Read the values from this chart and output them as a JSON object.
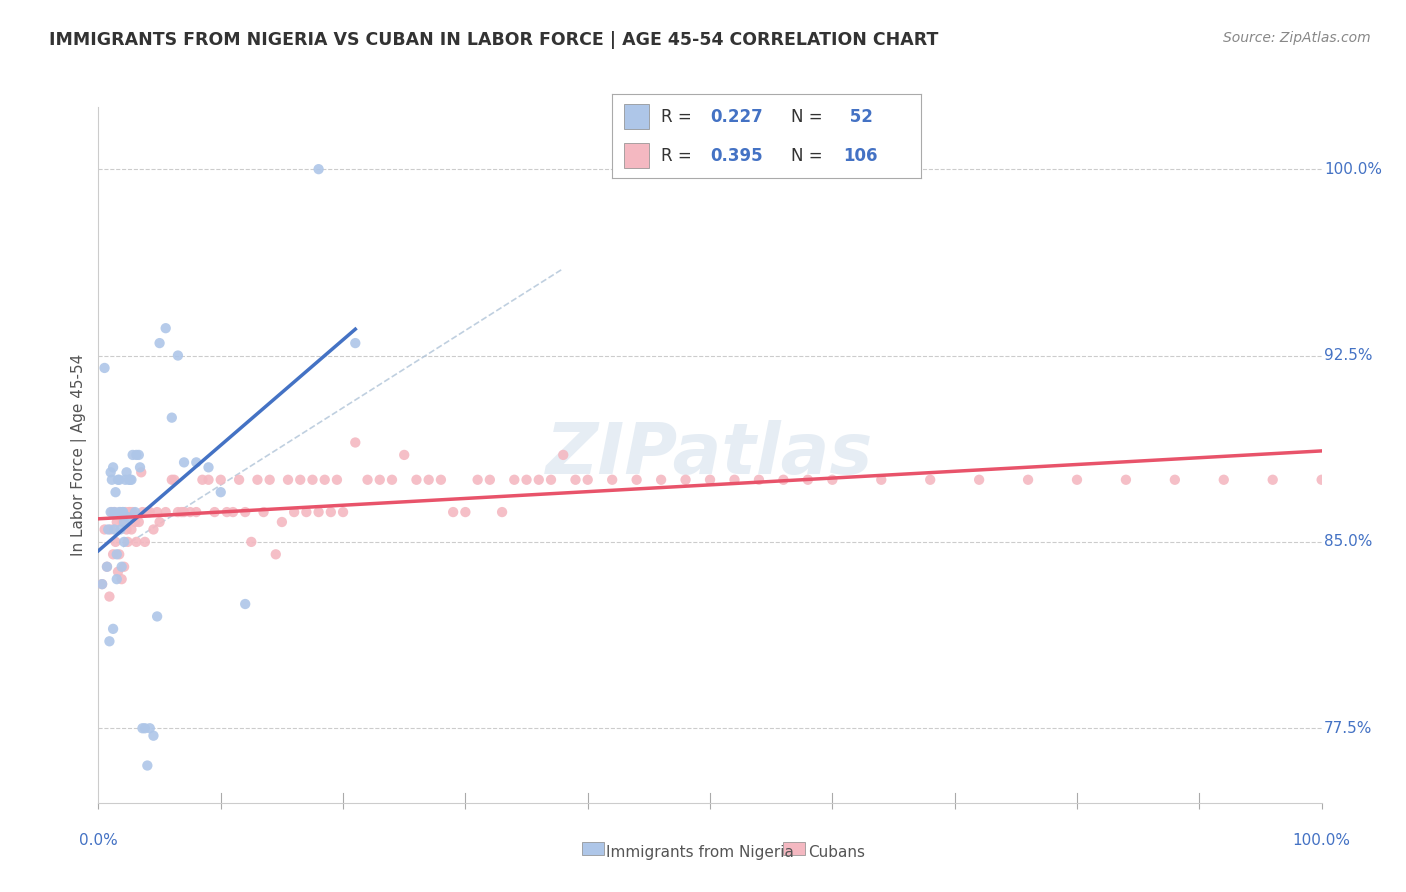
{
  "title": "IMMIGRANTS FROM NIGERIA VS CUBAN IN LABOR FORCE | AGE 45-54 CORRELATION CHART",
  "source": "Source: ZipAtlas.com",
  "ylabel": "In Labor Force | Age 45-54",
  "xmin": 0.0,
  "xmax": 1.0,
  "ymin": 0.745,
  "ymax": 1.025,
  "nigeria_R": 0.227,
  "nigeria_N": 52,
  "cuban_R": 0.395,
  "cuban_N": 106,
  "nigeria_color": "#aec6e8",
  "nigeria_line_color": "#4472c4",
  "cuban_color": "#f4b8c1",
  "cuban_line_color": "#e8536a",
  "watermark": "ZIPatlas",
  "nigeria_x": [
    0.003,
    0.005,
    0.007,
    0.008,
    0.009,
    0.01,
    0.01,
    0.011,
    0.012,
    0.012,
    0.013,
    0.013,
    0.014,
    0.015,
    0.015,
    0.016,
    0.017,
    0.017,
    0.018,
    0.019,
    0.02,
    0.02,
    0.021,
    0.021,
    0.022,
    0.023,
    0.024,
    0.025,
    0.026,
    0.027,
    0.028,
    0.03,
    0.031,
    0.033,
    0.034,
    0.036,
    0.038,
    0.04,
    0.042,
    0.045,
    0.048,
    0.05,
    0.055,
    0.06,
    0.065,
    0.07,
    0.08,
    0.09,
    0.1,
    0.12,
    0.18,
    0.21
  ],
  "nigeria_y": [
    0.833,
    0.92,
    0.84,
    0.855,
    0.81,
    0.862,
    0.878,
    0.875,
    0.815,
    0.88,
    0.862,
    0.855,
    0.87,
    0.845,
    0.835,
    0.875,
    0.862,
    0.875,
    0.855,
    0.84,
    0.862,
    0.862,
    0.85,
    0.858,
    0.875,
    0.878,
    0.86,
    0.875,
    0.875,
    0.875,
    0.885,
    0.862,
    0.885,
    0.885,
    0.88,
    0.775,
    0.775,
    0.76,
    0.775,
    0.772,
    0.82,
    0.93,
    0.936,
    0.9,
    0.925,
    0.882,
    0.882,
    0.88,
    0.87,
    0.825,
    1.0,
    0.93
  ],
  "cuban_x": [
    0.003,
    0.005,
    0.007,
    0.009,
    0.01,
    0.011,
    0.012,
    0.013,
    0.014,
    0.015,
    0.016,
    0.017,
    0.018,
    0.019,
    0.02,
    0.021,
    0.022,
    0.023,
    0.024,
    0.025,
    0.026,
    0.027,
    0.028,
    0.03,
    0.031,
    0.033,
    0.035,
    0.036,
    0.038,
    0.04,
    0.042,
    0.045,
    0.048,
    0.05,
    0.055,
    0.06,
    0.062,
    0.065,
    0.068,
    0.07,
    0.075,
    0.08,
    0.085,
    0.09,
    0.095,
    0.1,
    0.105,
    0.11,
    0.115,
    0.12,
    0.125,
    0.13,
    0.135,
    0.14,
    0.145,
    0.15,
    0.155,
    0.16,
    0.165,
    0.17,
    0.175,
    0.18,
    0.185,
    0.19,
    0.195,
    0.2,
    0.21,
    0.22,
    0.23,
    0.24,
    0.25,
    0.26,
    0.27,
    0.28,
    0.29,
    0.3,
    0.31,
    0.32,
    0.33,
    0.34,
    0.35,
    0.36,
    0.37,
    0.38,
    0.39,
    0.4,
    0.42,
    0.44,
    0.46,
    0.48,
    0.5,
    0.52,
    0.54,
    0.56,
    0.58,
    0.6,
    0.64,
    0.68,
    0.72,
    0.76,
    0.8,
    0.84,
    0.88,
    0.92,
    0.96,
    1.0
  ],
  "cuban_y": [
    0.833,
    0.855,
    0.84,
    0.828,
    0.855,
    0.862,
    0.845,
    0.862,
    0.85,
    0.858,
    0.838,
    0.845,
    0.862,
    0.835,
    0.858,
    0.84,
    0.862,
    0.855,
    0.85,
    0.862,
    0.862,
    0.855,
    0.862,
    0.858,
    0.85,
    0.858,
    0.878,
    0.862,
    0.85,
    0.862,
    0.862,
    0.855,
    0.862,
    0.858,
    0.862,
    0.875,
    0.875,
    0.862,
    0.862,
    0.862,
    0.862,
    0.862,
    0.875,
    0.875,
    0.862,
    0.875,
    0.862,
    0.862,
    0.875,
    0.862,
    0.85,
    0.875,
    0.862,
    0.875,
    0.845,
    0.858,
    0.875,
    0.862,
    0.875,
    0.862,
    0.875,
    0.862,
    0.875,
    0.862,
    0.875,
    0.862,
    0.89,
    0.875,
    0.875,
    0.875,
    0.885,
    0.875,
    0.875,
    0.875,
    0.862,
    0.862,
    0.875,
    0.875,
    0.862,
    0.875,
    0.875,
    0.875,
    0.875,
    0.885,
    0.875,
    0.875,
    0.875,
    0.875,
    0.875,
    0.875,
    0.875,
    0.875,
    0.875,
    0.875,
    0.875,
    0.875,
    0.875,
    0.875,
    0.875,
    0.875,
    0.875,
    0.875,
    0.875,
    0.875,
    0.875,
    0.875
  ]
}
